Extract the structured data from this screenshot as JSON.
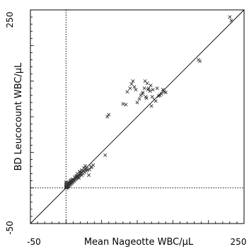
{
  "chart_data": {
    "type": "scatter",
    "title": "",
    "xlabel": "Mean Nageotte WBC/µL",
    "ylabel": "BD Leucocount WBC/µL",
    "xlim": [
      -50,
      250
    ],
    "ylim": [
      -50,
      250
    ],
    "x_tick_labels": [
      "-50",
      "250"
    ],
    "y_tick_labels": [
      "-50",
      "250"
    ],
    "grid": false,
    "identity_line": true,
    "reference_lines": {
      "x": 0,
      "y": 0
    },
    "marker": "x",
    "series": [
      {
        "points": [
          [
            0,
            0
          ],
          [
            0,
            1
          ],
          [
            0,
            2
          ],
          [
            1,
            0
          ],
          [
            1,
            1
          ],
          [
            1,
            3
          ],
          [
            2,
            1
          ],
          [
            2,
            2
          ],
          [
            2,
            4
          ],
          [
            3,
            2
          ],
          [
            3,
            3
          ],
          [
            3,
            5
          ],
          [
            0,
            4
          ],
          [
            1,
            5
          ],
          [
            0,
            6
          ],
          [
            1,
            7
          ],
          [
            2,
            6
          ],
          [
            0,
            8
          ],
          [
            4,
            3
          ],
          [
            4,
            6
          ],
          [
            5,
            4
          ],
          [
            5,
            7
          ],
          [
            6,
            5
          ],
          [
            6,
            8
          ],
          [
            7,
            6
          ],
          [
            7,
            9
          ],
          [
            8,
            7
          ],
          [
            8,
            10
          ],
          [
            9,
            8
          ],
          [
            10,
            9
          ],
          [
            10,
            12
          ],
          [
            11,
            10
          ],
          [
            12,
            11
          ],
          [
            13,
            12
          ],
          [
            14,
            13
          ],
          [
            15,
            14
          ],
          [
            15,
            17
          ],
          [
            16,
            15
          ],
          [
            17,
            16
          ],
          [
            18,
            14
          ],
          [
            18,
            18
          ],
          [
            19,
            17
          ],
          [
            20,
            19
          ],
          [
            20,
            21
          ],
          [
            21,
            20
          ],
          [
            22,
            18
          ],
          [
            22,
            22
          ],
          [
            24,
            20
          ],
          [
            25,
            24
          ],
          [
            26,
            22
          ],
          [
            28,
            24
          ],
          [
            29,
            27
          ],
          [
            30,
            25
          ],
          [
            32,
            18
          ],
          [
            33,
            26
          ],
          [
            35,
            29
          ],
          [
            36,
            30
          ],
          [
            38,
            32
          ],
          [
            25,
            28
          ],
          [
            27,
            31
          ],
          [
            22,
            25
          ],
          [
            19,
            23
          ],
          [
            16,
            20
          ],
          [
            14,
            16
          ],
          [
            12,
            15
          ],
          [
            9,
            12
          ],
          [
            7,
            11
          ],
          [
            6,
            10
          ],
          [
            4,
            8
          ],
          [
            55,
            46
          ],
          [
            58,
            100
          ],
          [
            60,
            103
          ],
          [
            80,
            118
          ],
          [
            84,
            117
          ],
          [
            86,
            135
          ],
          [
            90,
            140
          ],
          [
            92,
            146
          ],
          [
            94,
            150
          ],
          [
            96,
            142
          ],
          [
            98,
            138
          ],
          [
            100,
            120
          ],
          [
            103,
            125
          ],
          [
            105,
            130
          ],
          [
            107,
            132
          ],
          [
            108,
            134
          ],
          [
            110,
            140
          ],
          [
            111,
            150
          ],
          [
            112,
            128
          ],
          [
            113,
            126
          ],
          [
            115,
            138
          ],
          [
            116,
            140
          ],
          [
            118,
            136
          ],
          [
            120,
            115
          ],
          [
            121,
            128
          ],
          [
            122,
            138
          ],
          [
            124,
            124
          ],
          [
            126,
            122
          ],
          [
            128,
            140
          ],
          [
            130,
            129
          ],
          [
            132,
            130
          ],
          [
            134,
            132
          ],
          [
            136,
            138
          ],
          [
            138,
            135
          ],
          [
            140,
            134
          ],
          [
            114,
            147
          ],
          [
            119,
            144
          ],
          [
            186,
            180
          ],
          [
            188,
            178
          ],
          [
            230,
            240
          ],
          [
            232,
            235
          ]
        ]
      }
    ]
  }
}
